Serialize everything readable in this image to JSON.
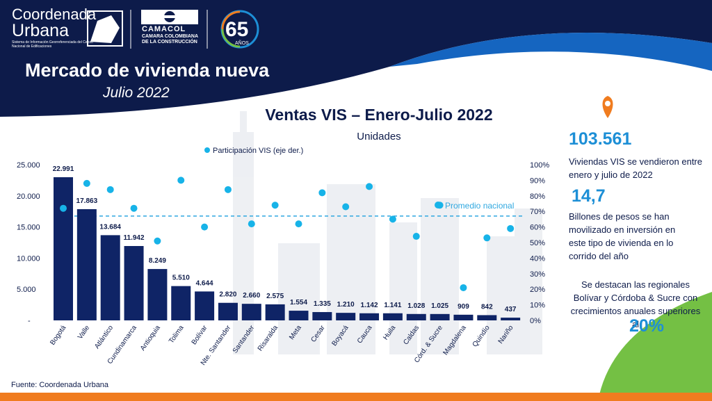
{
  "header": {
    "brand_line1": "Coordenada",
    "brand_line2": "Urbana",
    "brand_note": "Sistema de Información Georreferenciada del Censo Nacional de Edificaciones",
    "camacol_name": "CAMACOL",
    "camacol_sub": "CAMARA COLOMBIANA DE LA CONSTRUCCIÓN",
    "anniversary": "65",
    "anniversary_sub": "AÑOS",
    "title": "Mercado de vivienda nueva",
    "subtitle": "Julio 2022"
  },
  "chart_data": {
    "type": "bar",
    "title": "Ventas VIS – Enero-Julio 2022",
    "subtitle": "Unidades",
    "categories": [
      "Bogotá",
      "Valle",
      "Atlántico",
      "Cundinamarca",
      "Antioquia",
      "Tolima",
      "Bolívar",
      "Nte. Santander",
      "Santander",
      "Risaralda",
      "Meta",
      "Cesar",
      "Boyacá",
      "Cauca",
      "Huila",
      "Caldas",
      "Córd. & Sucre",
      "Magdalena",
      "Quindío",
      "Nariño"
    ],
    "series": [
      {
        "name": "Unidades",
        "axis": "left",
        "values": [
          22991,
          17863,
          13684,
          11942,
          8249,
          5510,
          4644,
          2820,
          2660,
          2575,
          1554,
          1335,
          1210,
          1142,
          1141,
          1028,
          1025,
          909,
          842,
          437
        ],
        "labels": [
          "22.991",
          "17.863",
          "13.684",
          "11.942",
          "8.249",
          "5.510",
          "4.644",
          "2.820",
          "2.660",
          "2.575",
          "1.554",
          "1.335",
          "1.210",
          "1.142",
          "1.141",
          "1.028",
          "1.025",
          "909",
          "842",
          "437"
        ]
      },
      {
        "name": "Participación VIS (eje der.)",
        "axis": "right",
        "values": [
          72,
          88,
          84,
          72,
          51,
          90,
          60,
          84,
          62,
          74,
          62,
          82,
          73,
          86,
          65,
          54,
          74,
          21,
          53,
          59
        ]
      }
    ],
    "ylim": [
      0,
      25000
    ],
    "yticks": [
      "25.000",
      "20.000",
      "15.000",
      "10.000",
      "5.000",
      "-"
    ],
    "y2lim": [
      0,
      100
    ],
    "y2ticks": [
      "100%",
      "90%",
      "80%",
      "70%",
      "60%",
      "50%",
      "40%",
      "30%",
      "20%",
      "10%",
      "0%"
    ],
    "reference_line": {
      "label": "Promedio nacional",
      "value": 67
    },
    "legend_label": "Participación VIS (eje der.)"
  },
  "side": {
    "stat1_value": "103.561",
    "stat1_text": "Viviendas VIS se vendieron entre enero y julio de 2022",
    "stat2_value": "14,7",
    "stat2_text": "Billones de pesos se han movilizado en inversión en este tipo de vivienda en lo corrido del año",
    "stat3_text": "Se destacan las regionales Bolívar y Córdoba & Sucre con crecimientos anuales superiores al",
    "stat3_value": "20%"
  },
  "footer": {
    "source": "Fuente: Coordenada Urbana"
  },
  "colors": {
    "navy": "#0d1b4a",
    "bar": "#0f2466",
    "dot": "#17b3e8",
    "accent": "#1d8fd6",
    "orange": "#f07c1f",
    "green": "#74c044"
  }
}
